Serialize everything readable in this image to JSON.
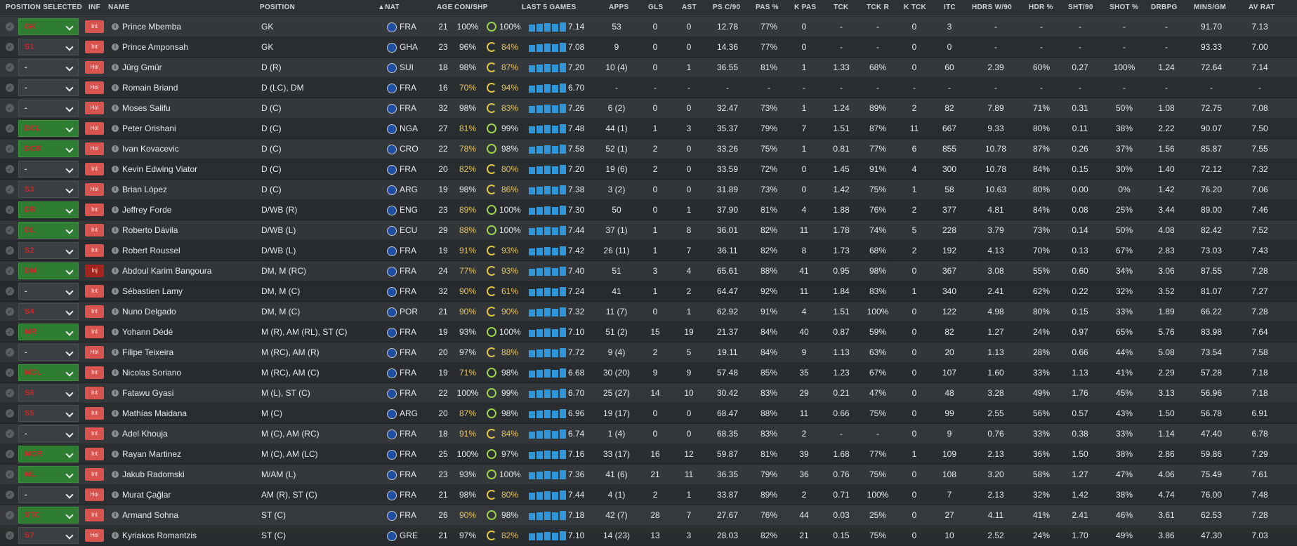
{
  "headers": {
    "position_selected": "POSITION SELECTED",
    "inf": "INF",
    "name": "NAME",
    "position": "POSITION",
    "nat": "▲NAT",
    "age": "AGE",
    "con_shp": "CON/SHP",
    "last5": "LAST 5 GAMES",
    "apps": "APPS",
    "gls": "GLS",
    "ast": "AST",
    "ps_c90": "PS C/90",
    "pas_pct": "PAS %",
    "k_pas": "K PAS",
    "tck": "TCK",
    "tck_r": "TCK R",
    "k_tck": "K TCK",
    "itc": "ITC",
    "hdrs_w90": "HDRS W/90",
    "hdr_pct": "HDR %",
    "sht90": "SHT/90",
    "shot_pct": "SHOT %",
    "drbpg": "DRBPG",
    "mins_gm": "MINS/GM",
    "av_rat": "AV RAT"
  },
  "colors": {
    "green_select": "#2e7d32",
    "int_badge": "#d9534f",
    "inj_badge": "#a52420",
    "spark_bar": "#2f97d9",
    "sharpness_good": "#9bd24a",
    "sharpness_low": "#e0c542"
  },
  "players": [
    {
      "sel": "GK",
      "sel_style": "green",
      "inf": "Int",
      "name": "Prince Mbemba",
      "position": "GK",
      "nat": "FRA",
      "age": "21",
      "con": "100%",
      "shp": "100%",
      "con_low": false,
      "shp_low": false,
      "last5": "7.14",
      "apps": "53",
      "gls": "0",
      "ast": "0",
      "ps_c90": "12.78",
      "pas_pct": "77%",
      "k_pas": "0",
      "tck": "-",
      "tck_r": "-",
      "k_tck": "0",
      "itc": "3",
      "hdrs_w90": "-",
      "hdr_pct": "-",
      "sht90": "-",
      "shot_pct": "-",
      "drbpg": "-",
      "mins_gm": "91.70",
      "av_rat": "7.13"
    },
    {
      "sel": "S1",
      "sel_style": "red",
      "inf": "Int",
      "name": "Prince Amponsah",
      "position": "GK",
      "nat": "GHA",
      "age": "23",
      "con": "96%",
      "shp": "84%",
      "con_low": false,
      "shp_low": true,
      "last5": "7.08",
      "apps": "9",
      "gls": "0",
      "ast": "0",
      "ps_c90": "14.36",
      "pas_pct": "77%",
      "k_pas": "0",
      "tck": "-",
      "tck_r": "-",
      "k_tck": "0",
      "itc": "0",
      "hdrs_w90": "-",
      "hdr_pct": "-",
      "sht90": "-",
      "shot_pct": "-",
      "drbpg": "-",
      "mins_gm": "93.33",
      "av_rat": "7.00"
    },
    {
      "sel": "-",
      "sel_style": "plain",
      "inf": "Hol",
      "name": "Jürg Gmür",
      "position": "D (R)",
      "nat": "SUI",
      "age": "18",
      "con": "98%",
      "shp": "87%",
      "con_low": false,
      "shp_low": true,
      "last5": "7.20",
      "apps": "10 (4)",
      "gls": "0",
      "ast": "1",
      "ps_c90": "36.55",
      "pas_pct": "81%",
      "k_pas": "1",
      "tck": "1.33",
      "tck_r": "68%",
      "k_tck": "0",
      "itc": "60",
      "hdrs_w90": "2.39",
      "hdr_pct": "60%",
      "sht90": "0.27",
      "shot_pct": "100%",
      "drbpg": "1.24",
      "mins_gm": "72.64",
      "av_rat": "7.14"
    },
    {
      "sel": "-",
      "sel_style": "plain",
      "inf": "Hol",
      "name": "Romain Briand",
      "position": "D (LC), DM",
      "nat": "FRA",
      "age": "16",
      "con": "70%",
      "shp": "94%",
      "con_low": true,
      "shp_low": true,
      "last5": "6.70",
      "apps": "-",
      "gls": "-",
      "ast": "-",
      "ps_c90": "-",
      "pas_pct": "-",
      "k_pas": "-",
      "tck": "-",
      "tck_r": "-",
      "k_tck": "-",
      "itc": "-",
      "hdrs_w90": "-",
      "hdr_pct": "-",
      "sht90": "-",
      "shot_pct": "-",
      "drbpg": "-",
      "mins_gm": "-",
      "av_rat": "-"
    },
    {
      "sel": "-",
      "sel_style": "plain",
      "inf": "Hol",
      "name": "Moses Salifu",
      "position": "D (C)",
      "nat": "FRA",
      "age": "32",
      "con": "98%",
      "shp": "83%",
      "con_low": false,
      "shp_low": true,
      "last5": "7.26",
      "apps": "6 (2)",
      "gls": "0",
      "ast": "0",
      "ps_c90": "32.47",
      "pas_pct": "73%",
      "k_pas": "1",
      "tck": "1.24",
      "tck_r": "89%",
      "k_tck": "2",
      "itc": "82",
      "hdrs_w90": "7.89",
      "hdr_pct": "71%",
      "sht90": "0.31",
      "shot_pct": "50%",
      "drbpg": "1.08",
      "mins_gm": "72.75",
      "av_rat": "7.08"
    },
    {
      "sel": "DCL",
      "sel_style": "green",
      "inf": "Hol",
      "name": "Peter Orishani",
      "position": "D (C)",
      "nat": "NGA",
      "age": "27",
      "con": "81%",
      "shp": "99%",
      "con_low": true,
      "shp_low": false,
      "last5": "7.48",
      "apps": "44 (1)",
      "gls": "1",
      "ast": "3",
      "ps_c90": "35.37",
      "pas_pct": "79%",
      "k_pas": "7",
      "tck": "1.51",
      "tck_r": "87%",
      "k_tck": "11",
      "itc": "667",
      "hdrs_w90": "9.33",
      "hdr_pct": "80%",
      "sht90": "0.11",
      "shot_pct": "38%",
      "drbpg": "2.22",
      "mins_gm": "90.07",
      "av_rat": "7.50"
    },
    {
      "sel": "DCR",
      "sel_style": "green",
      "inf": "Hol",
      "name": "Ivan Kovacevic",
      "position": "D (C)",
      "nat": "CRO",
      "age": "22",
      "con": "78%",
      "shp": "98%",
      "con_low": true,
      "shp_low": false,
      "last5": "7.58",
      "apps": "52 (1)",
      "gls": "2",
      "ast": "0",
      "ps_c90": "33.26",
      "pas_pct": "75%",
      "k_pas": "1",
      "tck": "0.81",
      "tck_r": "77%",
      "k_tck": "6",
      "itc": "855",
      "hdrs_w90": "10.78",
      "hdr_pct": "87%",
      "sht90": "0.26",
      "shot_pct": "37%",
      "drbpg": "1.56",
      "mins_gm": "85.87",
      "av_rat": "7.55"
    },
    {
      "sel": "-",
      "sel_style": "plain",
      "inf": "Int",
      "name": "Kevin Edwing Viator",
      "position": "D (C)",
      "nat": "FRA",
      "age": "20",
      "con": "82%",
      "shp": "80%",
      "con_low": true,
      "shp_low": true,
      "last5": "7.20",
      "apps": "19 (6)",
      "gls": "2",
      "ast": "0",
      "ps_c90": "33.59",
      "pas_pct": "72%",
      "k_pas": "0",
      "tck": "1.45",
      "tck_r": "91%",
      "k_tck": "4",
      "itc": "300",
      "hdrs_w90": "10.78",
      "hdr_pct": "84%",
      "sht90": "0.15",
      "shot_pct": "30%",
      "drbpg": "1.40",
      "mins_gm": "72.12",
      "av_rat": "7.32"
    },
    {
      "sel": "S3",
      "sel_style": "red",
      "inf": "Hol",
      "name": "Brian López",
      "position": "D (C)",
      "nat": "ARG",
      "age": "19",
      "con": "98%",
      "shp": "86%",
      "con_low": false,
      "shp_low": true,
      "last5": "7.38",
      "apps": "3 (2)",
      "gls": "0",
      "ast": "0",
      "ps_c90": "31.89",
      "pas_pct": "73%",
      "k_pas": "0",
      "tck": "1.42",
      "tck_r": "75%",
      "k_tck": "1",
      "itc": "58",
      "hdrs_w90": "10.63",
      "hdr_pct": "80%",
      "sht90": "0.00",
      "shot_pct": "0%",
      "drbpg": "1.42",
      "mins_gm": "76.20",
      "av_rat": "7.06"
    },
    {
      "sel": "DR",
      "sel_style": "green",
      "inf": "Int",
      "name": "Jeffrey Forde",
      "position": "D/WB (R)",
      "nat": "ENG",
      "age": "23",
      "con": "89%",
      "shp": "100%",
      "con_low": true,
      "shp_low": false,
      "last5": "7.30",
      "apps": "50",
      "gls": "0",
      "ast": "1",
      "ps_c90": "37.90",
      "pas_pct": "81%",
      "k_pas": "4",
      "tck": "1.88",
      "tck_r": "76%",
      "k_tck": "2",
      "itc": "377",
      "hdrs_w90": "4.81",
      "hdr_pct": "84%",
      "sht90": "0.08",
      "shot_pct": "25%",
      "drbpg": "3.44",
      "mins_gm": "89.00",
      "av_rat": "7.46"
    },
    {
      "sel": "DL",
      "sel_style": "green",
      "inf": "Int",
      "name": "Roberto Dávila",
      "position": "D/WB (L)",
      "nat": "ECU",
      "age": "29",
      "con": "88%",
      "shp": "100%",
      "con_low": true,
      "shp_low": false,
      "last5": "7.44",
      "apps": "37 (1)",
      "gls": "1",
      "ast": "8",
      "ps_c90": "36.01",
      "pas_pct": "82%",
      "k_pas": "11",
      "tck": "1.78",
      "tck_r": "74%",
      "k_tck": "5",
      "itc": "228",
      "hdrs_w90": "3.79",
      "hdr_pct": "73%",
      "sht90": "0.14",
      "shot_pct": "50%",
      "drbpg": "4.08",
      "mins_gm": "82.42",
      "av_rat": "7.52"
    },
    {
      "sel": "S2",
      "sel_style": "red",
      "inf": "Int",
      "name": "Robert Roussel",
      "position": "D/WB (L)",
      "nat": "FRA",
      "age": "19",
      "con": "91%",
      "shp": "93%",
      "con_low": true,
      "shp_low": true,
      "last5": "7.42",
      "apps": "26 (11)",
      "gls": "1",
      "ast": "7",
      "ps_c90": "36.11",
      "pas_pct": "82%",
      "k_pas": "8",
      "tck": "1.73",
      "tck_r": "68%",
      "k_tck": "2",
      "itc": "192",
      "hdrs_w90": "4.13",
      "hdr_pct": "70%",
      "sht90": "0.13",
      "shot_pct": "67%",
      "drbpg": "2.83",
      "mins_gm": "73.03",
      "av_rat": "7.43"
    },
    {
      "sel": "DM",
      "sel_style": "green",
      "inf": "Inj",
      "name": "Abdoul Karim Bangoura",
      "position": "DM, M (RC)",
      "nat": "FRA",
      "age": "24",
      "con": "77%",
      "shp": "93%",
      "con_low": true,
      "shp_low": true,
      "last5": "7.40",
      "apps": "51",
      "gls": "3",
      "ast": "4",
      "ps_c90": "65.61",
      "pas_pct": "88%",
      "k_pas": "41",
      "tck": "0.95",
      "tck_r": "98%",
      "k_tck": "0",
      "itc": "367",
      "hdrs_w90": "3.08",
      "hdr_pct": "55%",
      "sht90": "0.60",
      "shot_pct": "34%",
      "drbpg": "3.06",
      "mins_gm": "87.55",
      "av_rat": "7.28"
    },
    {
      "sel": "-",
      "sel_style": "plain",
      "inf": "Int",
      "name": "Sébastien Lamy",
      "position": "DM, M (C)",
      "nat": "FRA",
      "age": "32",
      "con": "90%",
      "shp": "61%",
      "con_low": true,
      "shp_low": true,
      "last5": "7.24",
      "apps": "41",
      "gls": "1",
      "ast": "2",
      "ps_c90": "64.47",
      "pas_pct": "92%",
      "k_pas": "11",
      "tck": "1.84",
      "tck_r": "83%",
      "k_tck": "1",
      "itc": "340",
      "hdrs_w90": "2.41",
      "hdr_pct": "62%",
      "sht90": "0.22",
      "shot_pct": "32%",
      "drbpg": "3.52",
      "mins_gm": "81.07",
      "av_rat": "7.27"
    },
    {
      "sel": "S4",
      "sel_style": "red",
      "inf": "Int",
      "name": "Nuno Delgado",
      "position": "DM, M (C)",
      "nat": "POR",
      "age": "21",
      "con": "90%",
      "shp": "90%",
      "con_low": true,
      "shp_low": true,
      "last5": "7.32",
      "apps": "11 (7)",
      "gls": "0",
      "ast": "1",
      "ps_c90": "62.92",
      "pas_pct": "91%",
      "k_pas": "4",
      "tck": "1.51",
      "tck_r": "100%",
      "k_tck": "0",
      "itc": "122",
      "hdrs_w90": "4.98",
      "hdr_pct": "80%",
      "sht90": "0.15",
      "shot_pct": "33%",
      "drbpg": "1.89",
      "mins_gm": "66.22",
      "av_rat": "7.28"
    },
    {
      "sel": "MR",
      "sel_style": "green",
      "inf": "Int",
      "name": "Yohann Dédé",
      "position": "M (R), AM (RL), ST (C)",
      "nat": "FRA",
      "age": "19",
      "con": "93%",
      "shp": "100%",
      "con_low": false,
      "shp_low": false,
      "last5": "7.10",
      "apps": "51 (2)",
      "gls": "15",
      "ast": "19",
      "ps_c90": "21.37",
      "pas_pct": "84%",
      "k_pas": "40",
      "tck": "0.87",
      "tck_r": "59%",
      "k_tck": "0",
      "itc": "82",
      "hdrs_w90": "1.27",
      "hdr_pct": "24%",
      "sht90": "0.97",
      "shot_pct": "65%",
      "drbpg": "5.76",
      "mins_gm": "83.98",
      "av_rat": "7.64"
    },
    {
      "sel": "-",
      "sel_style": "plain",
      "inf": "Hol",
      "name": "Filipe Teixeira",
      "position": "M (RC), AM (R)",
      "nat": "FRA",
      "age": "20",
      "con": "97%",
      "shp": "88%",
      "con_low": false,
      "shp_low": true,
      "last5": "7.72",
      "apps": "9 (4)",
      "gls": "2",
      "ast": "5",
      "ps_c90": "19.11",
      "pas_pct": "84%",
      "k_pas": "9",
      "tck": "1.13",
      "tck_r": "63%",
      "k_tck": "0",
      "itc": "20",
      "hdrs_w90": "1.13",
      "hdr_pct": "28%",
      "sht90": "0.66",
      "shot_pct": "44%",
      "drbpg": "5.08",
      "mins_gm": "73.54",
      "av_rat": "7.58"
    },
    {
      "sel": "MCL",
      "sel_style": "green",
      "inf": "Int",
      "name": "Nicolas Soriano",
      "position": "M (RC), AM (C)",
      "nat": "FRA",
      "age": "19",
      "con": "71%",
      "shp": "98%",
      "con_low": true,
      "shp_low": false,
      "last5": "6.68",
      "apps": "30 (20)",
      "gls": "9",
      "ast": "9",
      "ps_c90": "57.48",
      "pas_pct": "85%",
      "k_pas": "35",
      "tck": "1.23",
      "tck_r": "67%",
      "k_tck": "0",
      "itc": "107",
      "hdrs_w90": "1.60",
      "hdr_pct": "33%",
      "sht90": "1.13",
      "shot_pct": "41%",
      "drbpg": "2.29",
      "mins_gm": "57.28",
      "av_rat": "7.18"
    },
    {
      "sel": "S6",
      "sel_style": "red",
      "inf": "Int",
      "name": "Fatawu Gyasi",
      "position": "M (L), ST (C)",
      "nat": "FRA",
      "age": "22",
      "con": "100%",
      "shp": "99%",
      "con_low": false,
      "shp_low": false,
      "last5": "6.70",
      "apps": "25 (27)",
      "gls": "14",
      "ast": "10",
      "ps_c90": "30.42",
      "pas_pct": "83%",
      "k_pas": "29",
      "tck": "0.21",
      "tck_r": "47%",
      "k_tck": "0",
      "itc": "48",
      "hdrs_w90": "3.28",
      "hdr_pct": "49%",
      "sht90": "1.76",
      "shot_pct": "45%",
      "drbpg": "3.13",
      "mins_gm": "56.96",
      "av_rat": "7.18"
    },
    {
      "sel": "S5",
      "sel_style": "red",
      "inf": "Int",
      "name": "Mathías Maidana",
      "position": "M (C)",
      "nat": "ARG",
      "age": "20",
      "con": "87%",
      "shp": "98%",
      "con_low": true,
      "shp_low": false,
      "last5": "6.96",
      "apps": "19 (17)",
      "gls": "0",
      "ast": "0",
      "ps_c90": "68.47",
      "pas_pct": "88%",
      "k_pas": "11",
      "tck": "0.66",
      "tck_r": "75%",
      "k_tck": "0",
      "itc": "99",
      "hdrs_w90": "2.55",
      "hdr_pct": "56%",
      "sht90": "0.57",
      "shot_pct": "43%",
      "drbpg": "1.50",
      "mins_gm": "56.78",
      "av_rat": "6.91"
    },
    {
      "sel": "-",
      "sel_style": "plain",
      "inf": "Int",
      "name": "Adel Khouja",
      "position": "M (C), AM (RC)",
      "nat": "FRA",
      "age": "18",
      "con": "91%",
      "shp": "84%",
      "con_low": true,
      "shp_low": true,
      "last5": "6.74",
      "apps": "1 (4)",
      "gls": "0",
      "ast": "0",
      "ps_c90": "68.35",
      "pas_pct": "83%",
      "k_pas": "2",
      "tck": "-",
      "tck_r": "-",
      "k_tck": "0",
      "itc": "9",
      "hdrs_w90": "0.76",
      "hdr_pct": "33%",
      "sht90": "0.38",
      "shot_pct": "33%",
      "drbpg": "1.14",
      "mins_gm": "47.40",
      "av_rat": "6.78"
    },
    {
      "sel": "MCR",
      "sel_style": "green",
      "inf": "Int",
      "name": "Rayan Martinez",
      "position": "M (C), AM (LC)",
      "nat": "FRA",
      "age": "25",
      "con": "100%",
      "shp": "97%",
      "con_low": false,
      "shp_low": false,
      "last5": "7.16",
      "apps": "33 (17)",
      "gls": "16",
      "ast": "12",
      "ps_c90": "59.87",
      "pas_pct": "81%",
      "k_pas": "39",
      "tck": "1.68",
      "tck_r": "77%",
      "k_tck": "1",
      "itc": "109",
      "hdrs_w90": "2.13",
      "hdr_pct": "36%",
      "sht90": "1.50",
      "shot_pct": "38%",
      "drbpg": "2.86",
      "mins_gm": "59.86",
      "av_rat": "7.29"
    },
    {
      "sel": "ML",
      "sel_style": "green",
      "inf": "Int",
      "name": "Jakub Radomski",
      "position": "M/AM (L)",
      "nat": "FRA",
      "age": "23",
      "con": "93%",
      "shp": "100%",
      "con_low": false,
      "shp_low": false,
      "last5": "7.36",
      "apps": "41 (6)",
      "gls": "21",
      "ast": "11",
      "ps_c90": "36.35",
      "pas_pct": "79%",
      "k_pas": "36",
      "tck": "0.76",
      "tck_r": "75%",
      "k_tck": "0",
      "itc": "108",
      "hdrs_w90": "3.20",
      "hdr_pct": "58%",
      "sht90": "1.27",
      "shot_pct": "47%",
      "drbpg": "4.06",
      "mins_gm": "75.49",
      "av_rat": "7.61"
    },
    {
      "sel": "-",
      "sel_style": "plain",
      "inf": "Hol",
      "name": "Murat Çağlar",
      "position": "AM (R), ST (C)",
      "nat": "FRA",
      "age": "21",
      "con": "98%",
      "shp": "80%",
      "con_low": false,
      "shp_low": true,
      "last5": "7.44",
      "apps": "4 (1)",
      "gls": "2",
      "ast": "1",
      "ps_c90": "33.87",
      "pas_pct": "89%",
      "k_pas": "2",
      "tck": "0.71",
      "tck_r": "100%",
      "k_tck": "0",
      "itc": "7",
      "hdrs_w90": "2.13",
      "hdr_pct": "32%",
      "sht90": "1.42",
      "shot_pct": "38%",
      "drbpg": "4.74",
      "mins_gm": "76.00",
      "av_rat": "7.48"
    },
    {
      "sel": "STC",
      "sel_style": "green",
      "inf": "Int",
      "name": "Armand Sohna",
      "position": "ST (C)",
      "nat": "FRA",
      "age": "26",
      "con": "90%",
      "shp": "98%",
      "con_low": true,
      "shp_low": false,
      "last5": "7.18",
      "apps": "42 (7)",
      "gls": "28",
      "ast": "7",
      "ps_c90": "27.67",
      "pas_pct": "76%",
      "k_pas": "44",
      "tck": "0.03",
      "tck_r": "25%",
      "k_tck": "0",
      "itc": "27",
      "hdrs_w90": "4.11",
      "hdr_pct": "41%",
      "sht90": "2.41",
      "shot_pct": "46%",
      "drbpg": "3.61",
      "mins_gm": "62.53",
      "av_rat": "7.28"
    },
    {
      "sel": "S7",
      "sel_style": "red",
      "inf": "Hol",
      "name": "Kyriakos Romantzis",
      "position": "ST (C)",
      "nat": "GRE",
      "age": "21",
      "con": "97%",
      "shp": "82%",
      "con_low": false,
      "shp_low": true,
      "last5": "7.10",
      "apps": "14 (23)",
      "gls": "13",
      "ast": "3",
      "ps_c90": "28.03",
      "pas_pct": "82%",
      "k_pas": "21",
      "tck": "0.15",
      "tck_r": "75%",
      "k_tck": "0",
      "itc": "10",
      "hdrs_w90": "2.52",
      "hdr_pct": "24%",
      "sht90": "1.70",
      "shot_pct": "49%",
      "drbpg": "3.86",
      "mins_gm": "47.30",
      "av_rat": "7.03"
    }
  ]
}
